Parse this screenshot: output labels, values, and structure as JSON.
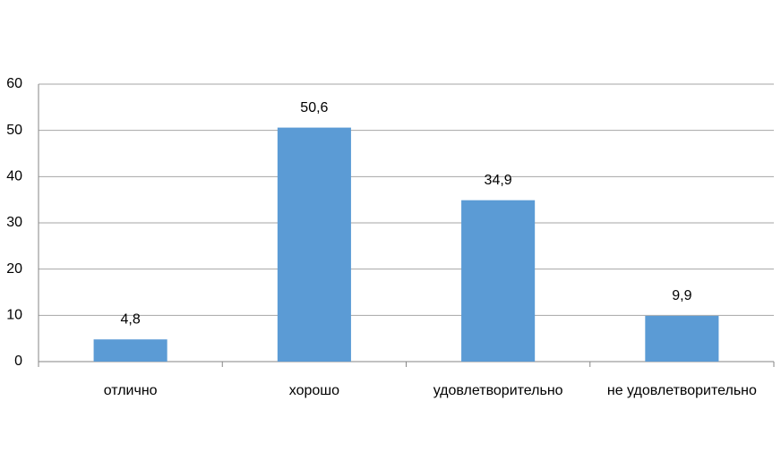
{
  "chart_data": {
    "type": "bar",
    "categories": [
      "отлично",
      "хорошо",
      "удовлетворительно",
      "не удовлетворительно"
    ],
    "values": [
      4.8,
      50.6,
      34.9,
      9.9
    ],
    "value_labels": [
      "4,8",
      "50,6",
      "34,9",
      "9,9"
    ],
    "color": "#5b9bd5",
    "ylim": [
      0,
      60
    ],
    "yticks": [
      0,
      10,
      20,
      30,
      40,
      50,
      60
    ],
    "grid": true
  }
}
